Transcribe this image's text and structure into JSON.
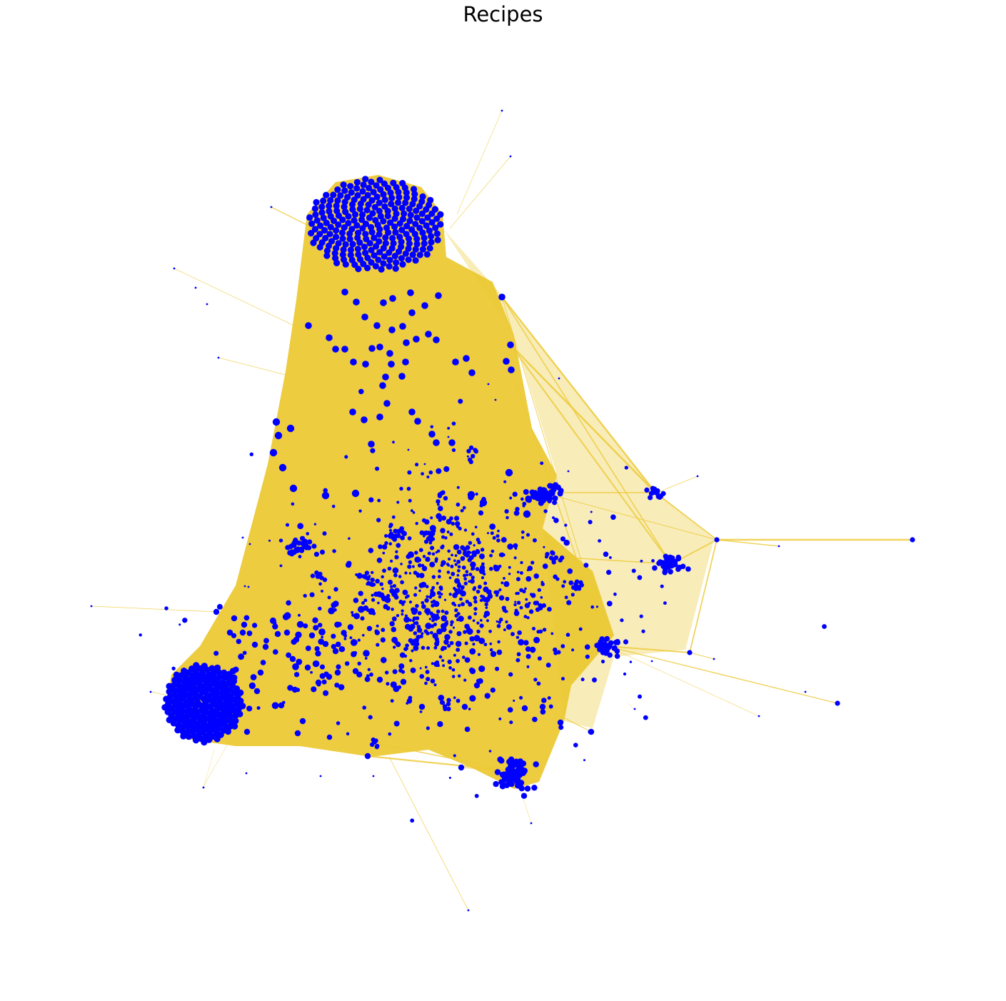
{
  "figure": {
    "title": "Recipes"
  },
  "chart_data": {
    "type": "network",
    "title": "Recipes",
    "xlabel": "",
    "ylabel": "",
    "axes_visible": false,
    "grid": false,
    "legend": null,
    "node_color": "#0000ff",
    "edge_color": "#ecc935",
    "node_count_estimate": 1500,
    "dense_clusters": [
      {
        "name": "top-cluster",
        "approx_nodes": 250
      },
      {
        "name": "bottom-left-cluster",
        "approx_nodes": 200
      },
      {
        "name": "bottom-cluster",
        "approx_nodes": 60
      },
      {
        "name": "right-cluster-upper",
        "approx_nodes": 40
      },
      {
        "name": "right-cluster-middle",
        "approx_nodes": 40
      },
      {
        "name": "right-cluster-lower",
        "approx_nodes": 40
      },
      {
        "name": "far-right-cluster",
        "approx_nodes": 15
      },
      {
        "name": "left-middle-cluster",
        "approx_nodes": 30
      }
    ]
  }
}
